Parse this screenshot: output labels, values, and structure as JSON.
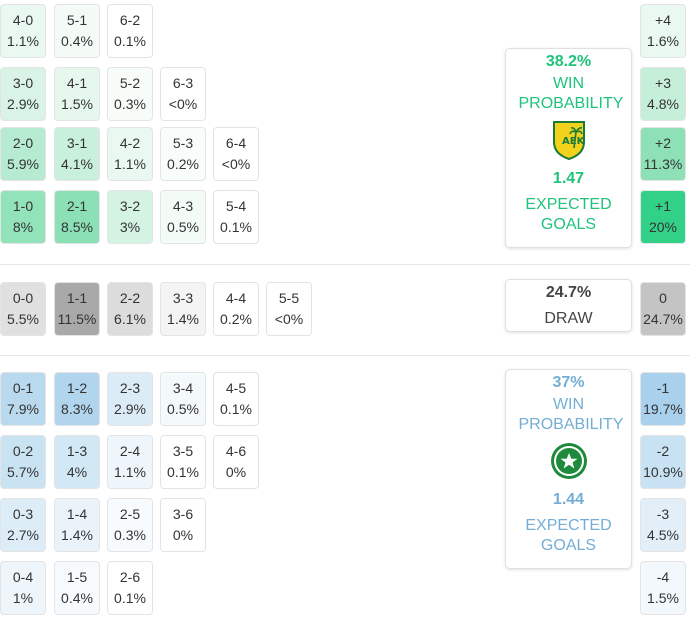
{
  "home": {
    "win_pct": "38.2%",
    "win_label": "WIN PROBABILITY",
    "xg": "1.47",
    "xg_label": "EXPECTED GOALS",
    "color": "#1fc37a",
    "logo": "aek-larnaca-badge",
    "rows": [
      [
        {
          "score": "4-0",
          "pct": "1.1%",
          "bg": "#e9f8f0"
        },
        {
          "score": "5-1",
          "pct": "0.4%",
          "bg": "#f4fbf7"
        },
        {
          "score": "6-2",
          "pct": "0.1%",
          "bg": "#ffffff"
        }
      ],
      [
        {
          "score": "3-0",
          "pct": "2.9%",
          "bg": "#d9f4e6"
        },
        {
          "score": "4-1",
          "pct": "1.5%",
          "bg": "#e6f7ee"
        },
        {
          "score": "5-2",
          "pct": "0.3%",
          "bg": "#f7fcf9"
        },
        {
          "score": "6-3",
          "pct": "<0%",
          "bg": "#ffffff"
        }
      ],
      [
        {
          "score": "2-0",
          "pct": "5.9%",
          "bg": "#b7ebd1"
        },
        {
          "score": "3-1",
          "pct": "4.1%",
          "bg": "#c9f0dc"
        },
        {
          "score": "4-2",
          "pct": "1.1%",
          "bg": "#e9f8f0"
        },
        {
          "score": "5-3",
          "pct": "0.2%",
          "bg": "#f8fcfa"
        },
        {
          "score": "6-4",
          "pct": "<0%",
          "bg": "#ffffff"
        }
      ],
      [
        {
          "score": "1-0",
          "pct": "8%",
          "bg": "#93e3ba"
        },
        {
          "score": "2-1",
          "pct": "8.5%",
          "bg": "#8be0b5"
        },
        {
          "score": "3-2",
          "pct": "3%",
          "bg": "#d5f3e3"
        },
        {
          "score": "4-3",
          "pct": "0.5%",
          "bg": "#f2fbf6"
        },
        {
          "score": "5-4",
          "pct": "0.1%",
          "bg": "#ffffff"
        }
      ]
    ],
    "margins": [
      {
        "label": "+4",
        "pct": "1.6%",
        "bg": "#e9f8f0"
      },
      {
        "label": "+3",
        "pct": "4.8%",
        "bg": "#c6efda"
      },
      {
        "label": "+2",
        "pct": "11.3%",
        "bg": "#8ee1b7"
      },
      {
        "label": "+1",
        "pct": "20%",
        "bg": "#33d188"
      }
    ]
  },
  "draw": {
    "pct": "24.7%",
    "label": "DRAW",
    "cells": [
      {
        "score": "0-0",
        "pct": "5.5%",
        "bg": "#e0e0e0"
      },
      {
        "score": "1-1",
        "pct": "11.5%",
        "bg": "#a9a9a9"
      },
      {
        "score": "2-2",
        "pct": "6.1%",
        "bg": "#dcdcdc"
      },
      {
        "score": "3-3",
        "pct": "1.4%",
        "bg": "#f4f4f4"
      },
      {
        "score": "4-4",
        "pct": "0.2%",
        "bg": "#ffffff"
      },
      {
        "score": "5-5",
        "pct": "<0%",
        "bg": "#ffffff"
      }
    ],
    "margin": {
      "label": "0",
      "pct": "24.7%",
      "bg": "#c4c4c4"
    }
  },
  "away": {
    "win_pct": "37%",
    "win_label": "WIN PROBABILITY",
    "xg": "1.44",
    "xg_label": "EXPECTED GOALS",
    "color": "#74aed5",
    "logo": "aris-limassol-badge",
    "rows": [
      [
        {
          "score": "0-1",
          "pct": "7.9%",
          "bg": "#b9d9ef"
        },
        {
          "score": "1-2",
          "pct": "8.3%",
          "bg": "#b2d5ee"
        },
        {
          "score": "2-3",
          "pct": "2.9%",
          "bg": "#dcecf7"
        },
        {
          "score": "3-4",
          "pct": "0.5%",
          "bg": "#f4f9fc"
        },
        {
          "score": "4-5",
          "pct": "0.1%",
          "bg": "#ffffff"
        }
      ],
      [
        {
          "score": "0-2",
          "pct": "5.7%",
          "bg": "#cae3f3"
        },
        {
          "score": "1-3",
          "pct": "4%",
          "bg": "#d3e8f5"
        },
        {
          "score": "2-4",
          "pct": "1.1%",
          "bg": "#eef5fb"
        },
        {
          "score": "3-5",
          "pct": "0.1%",
          "bg": "#ffffff"
        },
        {
          "score": "4-6",
          "pct": "0%",
          "bg": "#ffffff"
        }
      ],
      [
        {
          "score": "0-3",
          "pct": "2.7%",
          "bg": "#ddedf7"
        },
        {
          "score": "1-4",
          "pct": "1.4%",
          "bg": "#eaf3fa"
        },
        {
          "score": "2-5",
          "pct": "0.3%",
          "bg": "#f8fbfd"
        },
        {
          "score": "3-6",
          "pct": "0%",
          "bg": "#ffffff"
        }
      ],
      [
        {
          "score": "0-4",
          "pct": "1%",
          "bg": "#eef5fb"
        },
        {
          "score": "1-5",
          "pct": "0.4%",
          "bg": "#f6fafd"
        },
        {
          "score": "2-6",
          "pct": "0.1%",
          "bg": "#ffffff"
        }
      ]
    ],
    "margins": [
      {
        "label": "-1",
        "pct": "19.7%",
        "bg": "#a9d0ec"
      },
      {
        "label": "-2",
        "pct": "10.9%",
        "bg": "#c9e2f3"
      },
      {
        "label": "-3",
        "pct": "4.5%",
        "bg": "#e2eff8"
      },
      {
        "label": "-4",
        "pct": "1.5%",
        "bg": "#f2f8fc"
      }
    ]
  }
}
